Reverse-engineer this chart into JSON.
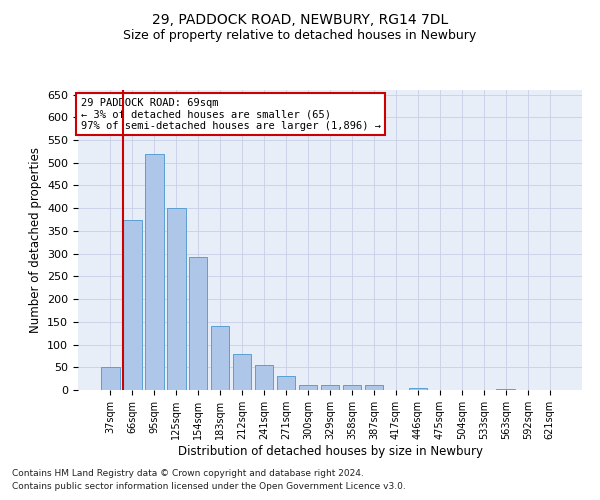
{
  "title1": "29, PADDOCK ROAD, NEWBURY, RG14 7DL",
  "title2": "Size of property relative to detached houses in Newbury",
  "xlabel": "Distribution of detached houses by size in Newbury",
  "ylabel": "Number of detached properties",
  "categories": [
    "37sqm",
    "66sqm",
    "95sqm",
    "125sqm",
    "154sqm",
    "183sqm",
    "212sqm",
    "241sqm",
    "271sqm",
    "300sqm",
    "329sqm",
    "358sqm",
    "387sqm",
    "417sqm",
    "446sqm",
    "475sqm",
    "504sqm",
    "533sqm",
    "563sqm",
    "592sqm",
    "621sqm"
  ],
  "values": [
    50,
    375,
    520,
    400,
    292,
    140,
    80,
    55,
    30,
    12,
    10,
    12,
    12,
    0,
    4,
    1,
    1,
    0,
    3,
    1,
    1
  ],
  "bar_color": "#aec6e8",
  "bar_edge_color": "#5a9fd4",
  "vline_x_index": 1,
  "vline_color": "#cc0000",
  "annotation_text": "29 PADDOCK ROAD: 69sqm\n← 3% of detached houses are smaller (65)\n97% of semi-detached houses are larger (1,896) →",
  "annotation_box_color": "#ffffff",
  "annotation_box_edge": "#cc0000",
  "ylim": [
    0,
    660
  ],
  "yticks": [
    0,
    50,
    100,
    150,
    200,
    250,
    300,
    350,
    400,
    450,
    500,
    550,
    600,
    650
  ],
  "footnote1": "Contains HM Land Registry data © Crown copyright and database right 2024.",
  "footnote2": "Contains public sector information licensed under the Open Government Licence v3.0.",
  "bg_color": "#e8eef8",
  "grid_color": "#c8d0e8",
  "title1_fontsize": 10,
  "title2_fontsize": 9
}
